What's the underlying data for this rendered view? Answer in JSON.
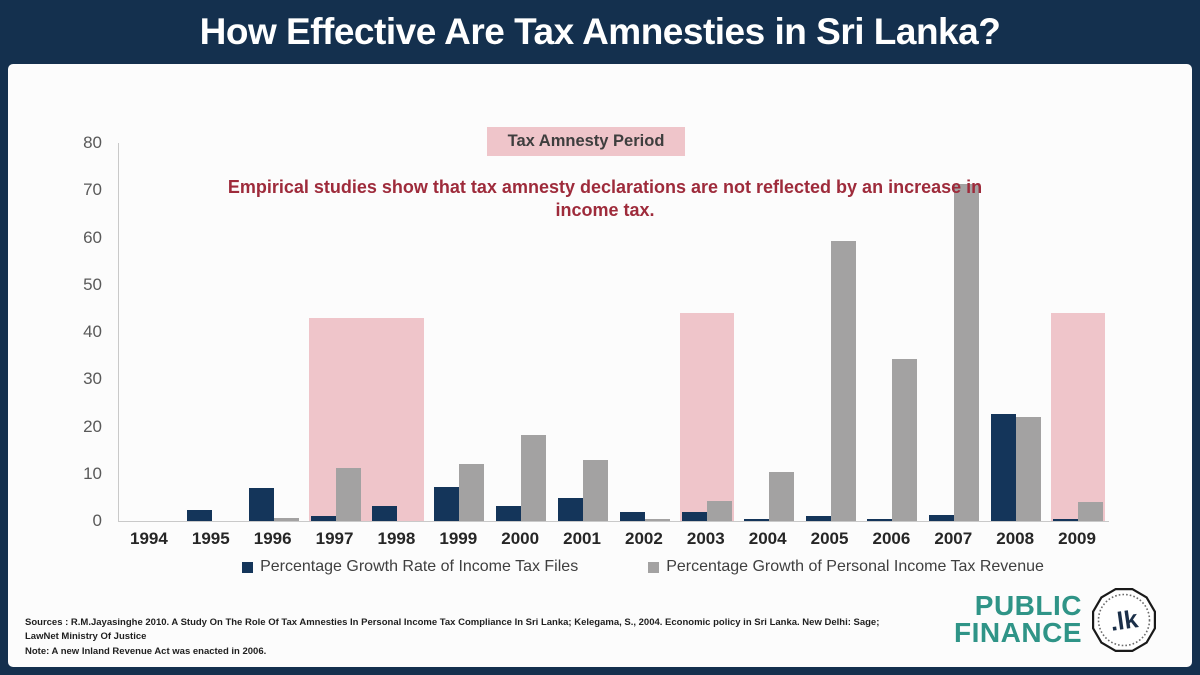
{
  "header": {
    "title": "How Effective Are Tax Amnesties in Sri Lanka?"
  },
  "chart_data": {
    "type": "bar",
    "title": "How Effective Are Tax Amnesties in Sri Lanka?",
    "categories": [
      "1994",
      "1995",
      "1996",
      "1997",
      "1998",
      "1999",
      "2000",
      "2001",
      "2002",
      "2003",
      "2004",
      "2005",
      "2006",
      "2007",
      "2008",
      "2009"
    ],
    "series": [
      {
        "name": "Percentage Growth Rate of Income Tax Files",
        "color": "#14355a",
        "values": [
          0,
          2.3,
          7.0,
          1.1,
          3.2,
          7.3,
          3.1,
          4.8,
          2.0,
          2.0,
          0.4,
          1.0,
          0.5,
          1.3,
          22.7,
          0.4
        ]
      },
      {
        "name": "Percentage Growth of Personal Income Tax Revenue",
        "color": "#a3a2a2",
        "values": [
          0,
          0,
          0.6,
          11.3,
          0,
          12.0,
          18.2,
          13.0,
          0.5,
          4.2,
          10.4,
          59.2,
          34.2,
          71.3,
          22.0,
          4.0
        ]
      }
    ],
    "ylim": [
      0,
      80
    ],
    "ytick_step": 10,
    "grid": false,
    "legend_position": "bottom",
    "band_label": "Tax Amnesty Period",
    "band_color": "#efc5ca",
    "amnesty_bands": [
      {
        "from": "1997",
        "to": "1998",
        "top": 43
      },
      {
        "from": "2003",
        "to": "2003",
        "top": 44
      },
      {
        "from": "2009",
        "to": "2009",
        "top": 44
      }
    ],
    "annotation": "Empirical studies show that tax amnesty declarations are not reflected by an increase in income tax.",
    "annotation_color": "#9e2b3b"
  },
  "footer": {
    "sources_line1": "Sources : R.M.Jayasinghe  2010. A Study On The Role Of Tax Amnesties In Personal Income Tax Compliance In Sri Lanka; Kelegama, S., 2004. Economic policy in Sri Lanka. New Delhi: Sage; LawNet Ministry Of Justice",
    "sources_line2": "Note: A new Inland Revenue Act was enacted in 2006.",
    "logo": {
      "line1": "PUBLIC",
      "line2": "FINANCE",
      "badge_text": ".lk"
    }
  },
  "colors": {
    "frame_navy": "#14304e",
    "bar_navy": "#14355a",
    "bar_gray": "#a3a2a2",
    "band_pink": "#efc5ca",
    "annotation_red": "#9e2b3b",
    "logo_teal": "#2f9487"
  }
}
